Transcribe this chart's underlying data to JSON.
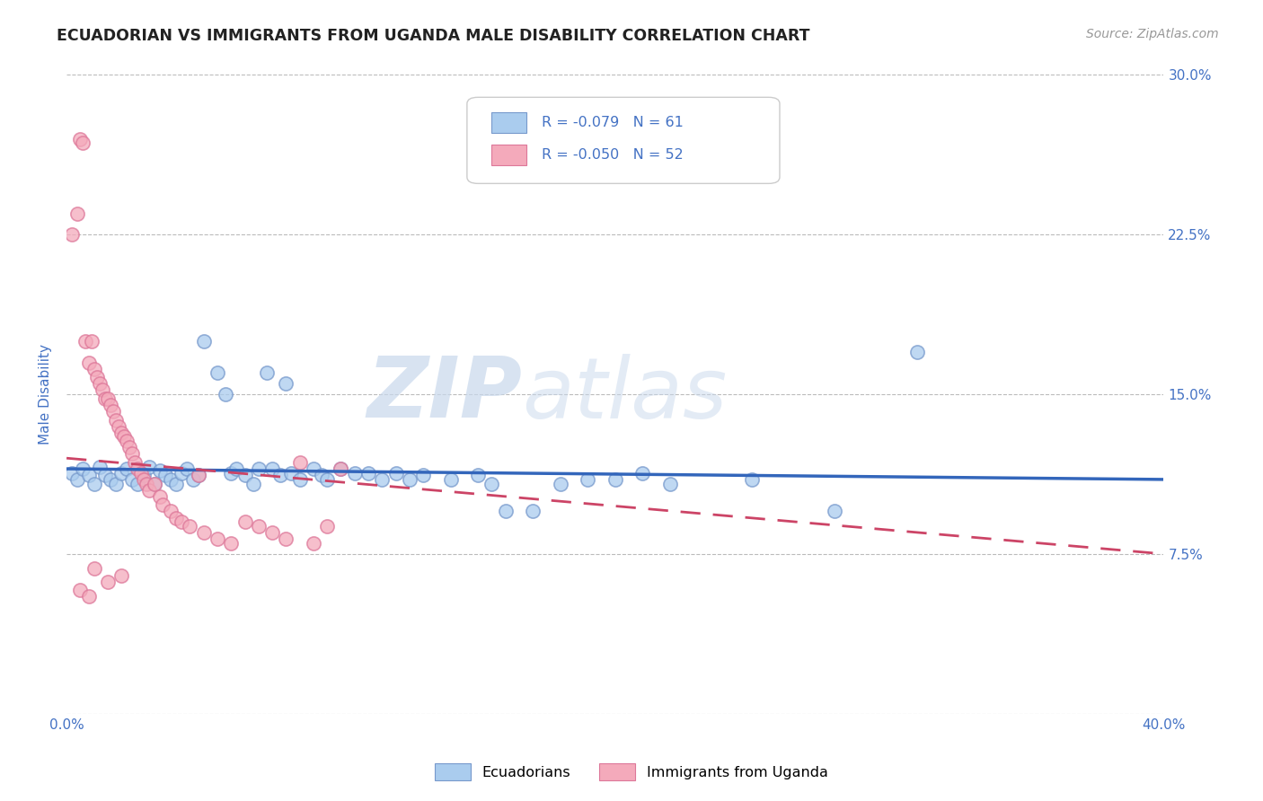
{
  "title": "ECUADORIAN VS IMMIGRANTS FROM UGANDA MALE DISABILITY CORRELATION CHART",
  "source_text": "Source: ZipAtlas.com",
  "ylabel_label": "Male Disability",
  "xlim": [
    0.0,
    0.4
  ],
  "ylim": [
    0.0,
    0.3
  ],
  "xticks": [
    0.0,
    0.05,
    0.1,
    0.15,
    0.2,
    0.25,
    0.3,
    0.35,
    0.4
  ],
  "yticks": [
    0.0,
    0.075,
    0.15,
    0.225,
    0.3
  ],
  "ytick_labels_right": [
    "",
    "7.5%",
    "15.0%",
    "22.5%",
    "30.0%"
  ],
  "xtick_labels": [
    "0.0%",
    "",
    "",
    "",
    "",
    "",
    "",
    "",
    "40.0%"
  ],
  "blue_color": "#aaccee",
  "pink_color": "#f4aabb",
  "blue_edge_color": "#7799cc",
  "pink_edge_color": "#dd7799",
  "blue_line_color": "#3366bb",
  "pink_line_color": "#cc4466",
  "legend_R_blue": "-0.079",
  "legend_N_blue": "61",
  "legend_R_pink": "-0.050",
  "legend_N_pink": "52",
  "blue_scatter": [
    [
      0.002,
      0.113
    ],
    [
      0.004,
      0.11
    ],
    [
      0.006,
      0.115
    ],
    [
      0.008,
      0.112
    ],
    [
      0.01,
      0.108
    ],
    [
      0.012,
      0.116
    ],
    [
      0.014,
      0.112
    ],
    [
      0.016,
      0.11
    ],
    [
      0.018,
      0.108
    ],
    [
      0.02,
      0.113
    ],
    [
      0.022,
      0.115
    ],
    [
      0.024,
      0.11
    ],
    [
      0.026,
      0.108
    ],
    [
      0.028,
      0.112
    ],
    [
      0.03,
      0.116
    ],
    [
      0.032,
      0.108
    ],
    [
      0.034,
      0.114
    ],
    [
      0.036,
      0.112
    ],
    [
      0.038,
      0.11
    ],
    [
      0.04,
      0.108
    ],
    [
      0.042,
      0.113
    ],
    [
      0.044,
      0.115
    ],
    [
      0.046,
      0.11
    ],
    [
      0.048,
      0.112
    ],
    [
      0.05,
      0.175
    ],
    [
      0.055,
      0.16
    ],
    [
      0.058,
      0.15
    ],
    [
      0.06,
      0.113
    ],
    [
      0.062,
      0.115
    ],
    [
      0.065,
      0.112
    ],
    [
      0.068,
      0.108
    ],
    [
      0.07,
      0.115
    ],
    [
      0.073,
      0.16
    ],
    [
      0.075,
      0.115
    ],
    [
      0.078,
      0.112
    ],
    [
      0.08,
      0.155
    ],
    [
      0.082,
      0.113
    ],
    [
      0.085,
      0.11
    ],
    [
      0.09,
      0.115
    ],
    [
      0.093,
      0.112
    ],
    [
      0.095,
      0.11
    ],
    [
      0.1,
      0.115
    ],
    [
      0.105,
      0.113
    ],
    [
      0.11,
      0.113
    ],
    [
      0.115,
      0.11
    ],
    [
      0.12,
      0.113
    ],
    [
      0.125,
      0.11
    ],
    [
      0.13,
      0.112
    ],
    [
      0.14,
      0.11
    ],
    [
      0.15,
      0.112
    ],
    [
      0.155,
      0.108
    ],
    [
      0.16,
      0.095
    ],
    [
      0.17,
      0.095
    ],
    [
      0.18,
      0.108
    ],
    [
      0.19,
      0.11
    ],
    [
      0.2,
      0.11
    ],
    [
      0.21,
      0.113
    ],
    [
      0.22,
      0.108
    ],
    [
      0.25,
      0.11
    ],
    [
      0.28,
      0.095
    ],
    [
      0.31,
      0.17
    ]
  ],
  "pink_scatter": [
    [
      0.002,
      0.225
    ],
    [
      0.004,
      0.235
    ],
    [
      0.005,
      0.27
    ],
    [
      0.006,
      0.268
    ],
    [
      0.007,
      0.175
    ],
    [
      0.008,
      0.165
    ],
    [
      0.009,
      0.175
    ],
    [
      0.01,
      0.162
    ],
    [
      0.011,
      0.158
    ],
    [
      0.012,
      0.155
    ],
    [
      0.013,
      0.152
    ],
    [
      0.014,
      0.148
    ],
    [
      0.015,
      0.148
    ],
    [
      0.016,
      0.145
    ],
    [
      0.017,
      0.142
    ],
    [
      0.018,
      0.138
    ],
    [
      0.019,
      0.135
    ],
    [
      0.02,
      0.132
    ],
    [
      0.021,
      0.13
    ],
    [
      0.022,
      0.128
    ],
    [
      0.023,
      0.125
    ],
    [
      0.024,
      0.122
    ],
    [
      0.025,
      0.118
    ],
    [
      0.026,
      0.115
    ],
    [
      0.027,
      0.113
    ],
    [
      0.028,
      0.11
    ],
    [
      0.029,
      0.108
    ],
    [
      0.03,
      0.105
    ],
    [
      0.032,
      0.108
    ],
    [
      0.034,
      0.102
    ],
    [
      0.035,
      0.098
    ],
    [
      0.038,
      0.095
    ],
    [
      0.04,
      0.092
    ],
    [
      0.042,
      0.09
    ],
    [
      0.045,
      0.088
    ],
    [
      0.048,
      0.112
    ],
    [
      0.05,
      0.085
    ],
    [
      0.055,
      0.082
    ],
    [
      0.06,
      0.08
    ],
    [
      0.065,
      0.09
    ],
    [
      0.07,
      0.088
    ],
    [
      0.075,
      0.085
    ],
    [
      0.08,
      0.082
    ],
    [
      0.085,
      0.118
    ],
    [
      0.09,
      0.08
    ],
    [
      0.095,
      0.088
    ],
    [
      0.1,
      0.115
    ],
    [
      0.01,
      0.068
    ],
    [
      0.015,
      0.062
    ],
    [
      0.02,
      0.065
    ],
    [
      0.005,
      0.058
    ],
    [
      0.008,
      0.055
    ]
  ],
  "watermark_ZIP": "ZIP",
  "watermark_atlas": "atlas",
  "background_color": "#ffffff",
  "grid_color": "#bbbbbb",
  "axis_label_color": "#4472c4",
  "tick_label_color": "#4472c4",
  "title_color": "#222222",
  "legend_text_color": "#4472c4",
  "legend_R_color": "#cc3355",
  "source_color": "#999999"
}
